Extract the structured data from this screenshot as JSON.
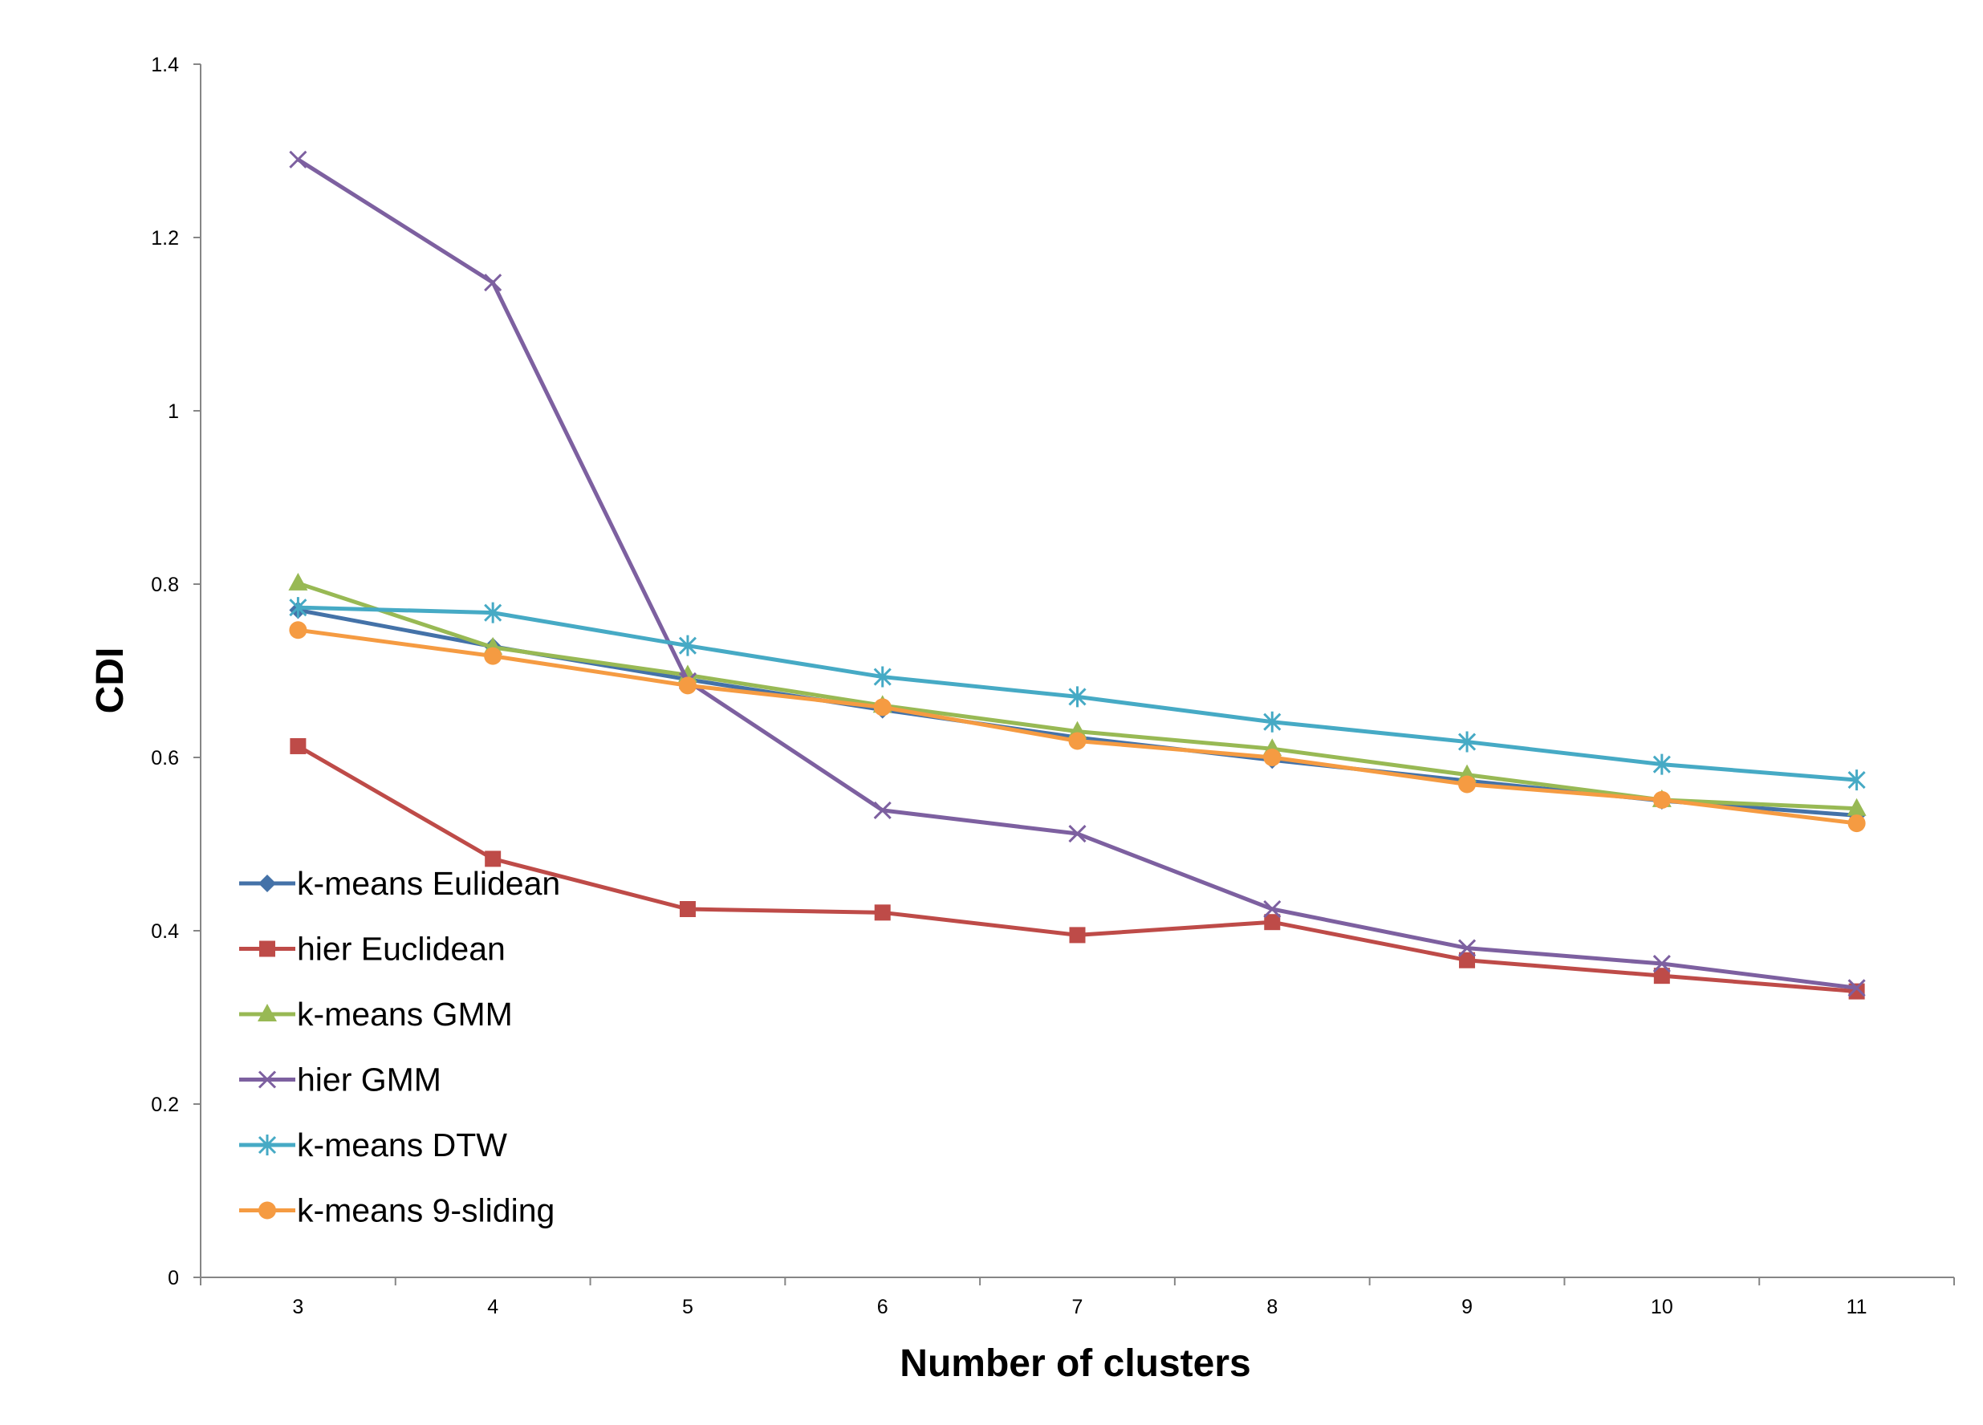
{
  "chart_data": {
    "type": "line",
    "title": "",
    "xlabel": "Number of clusters",
    "ylabel": "CDI",
    "categories": [
      "3",
      "4",
      "5",
      "6",
      "7",
      "8",
      "9",
      "10",
      "11"
    ],
    "ylim": [
      0,
      1.4
    ],
    "yticks": [
      0,
      0.2,
      0.4,
      0.6,
      0.8,
      1,
      1.2,
      1.4
    ],
    "ytick_labels": [
      "0",
      "0.2",
      "0.4",
      "0.6",
      "0.8",
      "1",
      "1.2",
      "1.4"
    ],
    "grid": false,
    "legend_position": "bottom-left",
    "series": [
      {
        "name": "k-means Eulidean",
        "color": "#4472A8",
        "marker": "diamond",
        "values": [
          0.77,
          0.728,
          0.69,
          0.655,
          0.623,
          0.597,
          0.573,
          0.55,
          0.533
        ]
      },
      {
        "name": "hier Euclidean",
        "color": "#BE4B48",
        "marker": "square",
        "values": [
          0.613,
          0.483,
          0.425,
          0.421,
          0.395,
          0.41,
          0.366,
          0.348,
          0.33
        ]
      },
      {
        "name": "k-means GMM",
        "color": "#98B954",
        "marker": "triangle",
        "values": [
          0.801,
          0.727,
          0.695,
          0.66,
          0.63,
          0.61,
          0.58,
          0.551,
          0.541
        ]
      },
      {
        "name": "hier GMM",
        "color": "#7D60A0",
        "marker": "x",
        "values": [
          1.29,
          1.148,
          0.688,
          0.539,
          0.512,
          0.425,
          0.38,
          0.362,
          0.334
        ]
      },
      {
        "name": "k-means DTW",
        "color": "#46AAC5",
        "marker": "star",
        "values": [
          0.773,
          0.767,
          0.729,
          0.693,
          0.67,
          0.641,
          0.618,
          0.592,
          0.574
        ]
      },
      {
        "name": "k-means 9-sliding",
        "color": "#F59B42",
        "marker": "circle",
        "values": [
          0.747,
          0.717,
          0.683,
          0.658,
          0.619,
          0.6,
          0.569,
          0.551,
          0.524
        ]
      }
    ]
  }
}
